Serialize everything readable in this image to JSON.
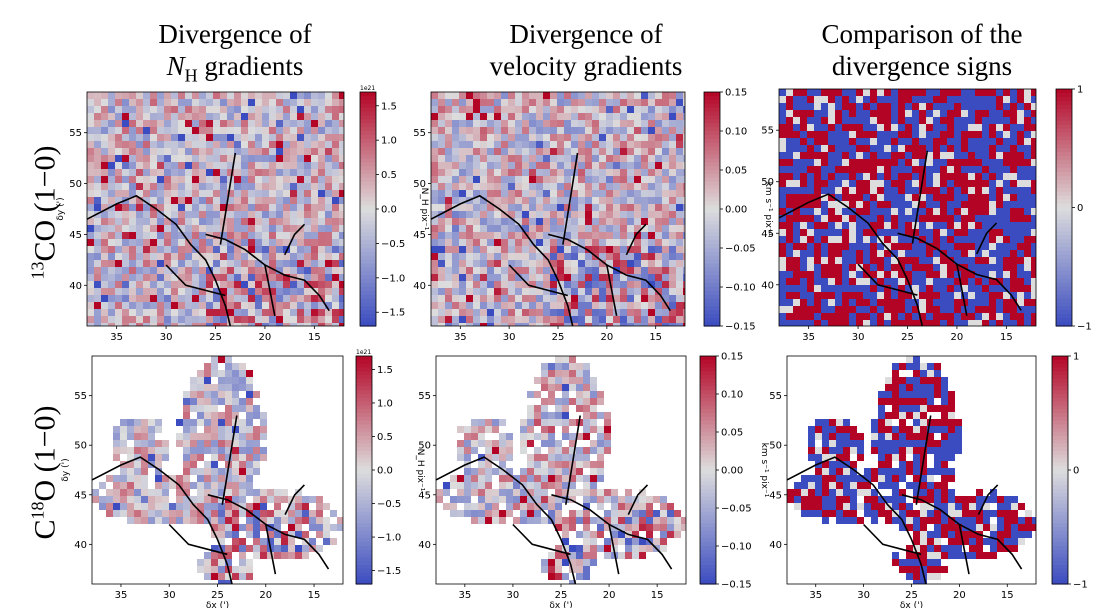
{
  "column_titles": [
    {
      "line1": "Divergence of",
      "line2_main": "N",
      "line2_sub": "H",
      "line2_rest": " gradients"
    },
    {
      "line1": "Divergence of",
      "line2_main": "velocity gradients",
      "line2_sub": "",
      "line2_rest": ""
    },
    {
      "line1": "Comparison of the",
      "line2_main": "divergence signs",
      "line2_sub": "",
      "line2_rest": ""
    }
  ],
  "row_titles": [
    {
      "sup": "13",
      "main": "CO (1−0)"
    },
    {
      "sup": "18",
      "pre": "C",
      "main": "O (1−0)"
    }
  ],
  "colors": {
    "low": "#3b4cc0",
    "mid": "#dddddd",
    "high": "#b40426",
    "filament": "#000000"
  },
  "chart_data": [
    {
      "type": "heatmap",
      "panel": "13CO N_H divergence",
      "colormap": "coolwarm",
      "x_range": [
        38,
        12
      ],
      "y_range": [
        36,
        59
      ],
      "xticks": [
        "35",
        "30",
        "25",
        "20",
        "15"
      ],
      "yticks": [
        "40",
        "45",
        "50",
        "55"
      ],
      "xlabel": "",
      "ylabel": "δy (')",
      "cbar_ticks": [
        "−1.5",
        "−1.0",
        "−0.5",
        "0.0",
        "0.5",
        "1.0",
        "1.5"
      ],
      "cbar_range": [
        -1.7,
        1.7
      ],
      "cbar_exp": "1e21",
      "cbar_label": "N_H pix⁻¹",
      "coverage": "full"
    },
    {
      "type": "heatmap",
      "panel": "13CO velocity divergence",
      "colormap": "coolwarm",
      "x_range": [
        38,
        12
      ],
      "y_range": [
        36,
        59
      ],
      "xticks": [
        "35",
        "30",
        "25",
        "20",
        "15"
      ],
      "yticks": [
        "40",
        "45",
        "50",
        "55"
      ],
      "xlabel": "",
      "ylabel": "",
      "cbar_ticks": [
        "−0.15",
        "−0.10",
        "−0.05",
        "0.00",
        "0.05",
        "0.10",
        "0.15"
      ],
      "cbar_range": [
        -0.15,
        0.15
      ],
      "cbar_exp": "",
      "cbar_label": "km s⁻¹ pix⁻¹",
      "coverage": "full"
    },
    {
      "type": "heatmap",
      "panel": "13CO sign comparison",
      "colormap": "coolwarm",
      "x_range": [
        38,
        12
      ],
      "y_range": [
        36,
        59
      ],
      "xticks": [
        "35",
        "30",
        "25",
        "20",
        "15"
      ],
      "yticks": [
        "40",
        "45",
        "50",
        "55"
      ],
      "xlabel": "",
      "ylabel": "",
      "cbar_ticks": [
        "−1",
        "0",
        "1"
      ],
      "cbar_range": [
        -1,
        1
      ],
      "cbar_exp": "",
      "cbar_label": "",
      "coverage": "full"
    },
    {
      "type": "heatmap",
      "panel": "C18O N_H divergence",
      "colormap": "coolwarm",
      "x_range": [
        38,
        12
      ],
      "y_range": [
        36,
        59
      ],
      "xticks": [
        "35",
        "30",
        "25",
        "20",
        "15"
      ],
      "yticks": [
        "40",
        "45",
        "50",
        "55"
      ],
      "xlabel": "δx (')",
      "ylabel": "δy (')",
      "cbar_ticks": [
        "−1.5",
        "−1.0",
        "−0.5",
        "0.0",
        "0.5",
        "1.0",
        "1.5"
      ],
      "cbar_range": [
        -1.7,
        1.7
      ],
      "cbar_exp": "1e21",
      "cbar_label": "N_H pix⁻¹",
      "coverage": "patchy"
    },
    {
      "type": "heatmap",
      "panel": "C18O velocity divergence",
      "colormap": "coolwarm",
      "x_range": [
        38,
        12
      ],
      "y_range": [
        36,
        59
      ],
      "xticks": [
        "35",
        "30",
        "25",
        "20",
        "15"
      ],
      "yticks": [
        "40",
        "45",
        "50",
        "55"
      ],
      "xlabel": "δx (')",
      "ylabel": "",
      "cbar_ticks": [
        "−0.15",
        "−0.10",
        "−0.05",
        "0.00",
        "0.05",
        "0.10",
        "0.15"
      ],
      "cbar_range": [
        -0.15,
        0.15
      ],
      "cbar_exp": "",
      "cbar_label": "km s⁻¹ pix⁻¹",
      "coverage": "patchy"
    },
    {
      "type": "heatmap",
      "panel": "C18O sign comparison",
      "colormap": "coolwarm",
      "x_range": [
        38,
        12
      ],
      "y_range": [
        36,
        59
      ],
      "xticks": [
        "35",
        "30",
        "25",
        "20",
        "15"
      ],
      "yticks": [
        "40",
        "45",
        "50",
        "55"
      ],
      "xlabel": "δx (')",
      "ylabel": "",
      "cbar_ticks": [
        "−1",
        "0",
        "1"
      ],
      "cbar_range": [
        -1,
        1
      ],
      "cbar_exp": "",
      "cbar_label": "",
      "coverage": "patchy"
    }
  ]
}
